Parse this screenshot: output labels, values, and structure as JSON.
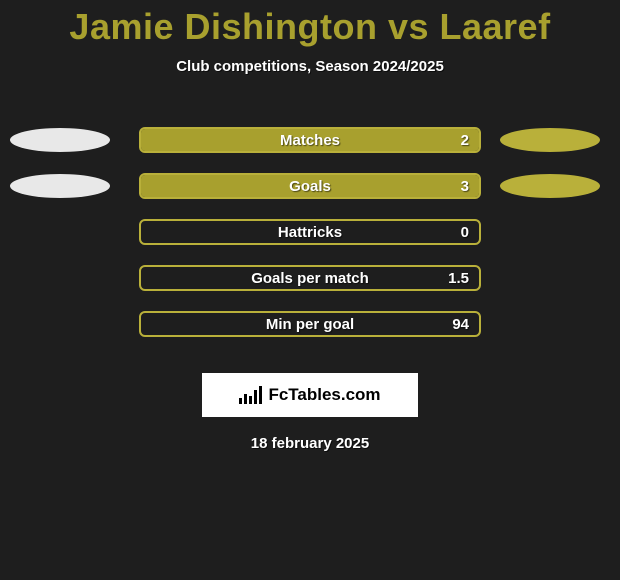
{
  "colors": {
    "background": "#1e1e1e",
    "title": "#a8a02e",
    "player1_accent": "#e8e8e8",
    "player2_accent": "#b9b03a",
    "bar_border": "#b9b03a",
    "bar_fill": "#a8a02e",
    "white": "#ffffff"
  },
  "title": {
    "text": "Jamie Dishington vs Laaref",
    "fontsize": 36
  },
  "subtitle": "Club competitions, Season 2024/2025",
  "stats": [
    {
      "label": "Matches",
      "value": "2",
      "fill_pct": 100,
      "left_ellipse": true,
      "right_ellipse": true
    },
    {
      "label": "Goals",
      "value": "3",
      "fill_pct": 100,
      "left_ellipse": true,
      "right_ellipse": true
    },
    {
      "label": "Hattricks",
      "value": "0",
      "fill_pct": 0,
      "left_ellipse": false,
      "right_ellipse": false
    },
    {
      "label": "Goals per match",
      "value": "1.5",
      "fill_pct": 0,
      "left_ellipse": false,
      "right_ellipse": false
    },
    {
      "label": "Min per goal",
      "value": "94",
      "fill_pct": 0,
      "left_ellipse": false,
      "right_ellipse": false
    }
  ],
  "logo": {
    "text": "FcTables.com"
  },
  "footer_date": "18 february 2025"
}
